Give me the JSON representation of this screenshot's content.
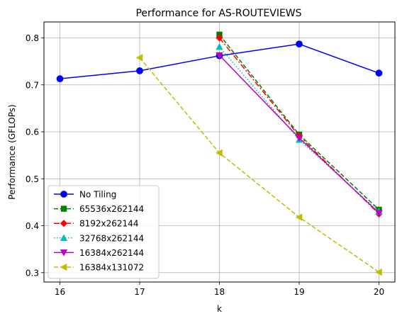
{
  "chart_data": {
    "type": "line",
    "title": "Performance for AS-ROUTEVIEWS",
    "xlabel": "k",
    "ylabel": "Performance (GFLOPs)",
    "xlim": [
      15.8,
      20.2
    ],
    "ylim": [
      0.28,
      0.834
    ],
    "xticks": [
      "16",
      "17",
      "18",
      "19",
      "20"
    ],
    "yticks": [
      "0.3",
      "0.4",
      "0.5",
      "0.6",
      "0.7",
      "0.8"
    ],
    "grid": true,
    "legend_position": "lower-left",
    "series": [
      {
        "name": "No Tiling",
        "color": "#0000ff",
        "linestyle": "solid",
        "marker": "circle",
        "x": [
          16,
          17,
          18,
          19,
          20
        ],
        "values": [
          0.713,
          0.73,
          0.762,
          0.787,
          0.725
        ]
      },
      {
        "name": "65536x262144",
        "color": "#008000",
        "linestyle": "dashed",
        "marker": "square",
        "x": [
          18,
          19,
          20
        ],
        "values": [
          0.807,
          0.594,
          0.434
        ]
      },
      {
        "name": "8192x262144",
        "color": "#ff0000",
        "linestyle": "dashdot",
        "marker": "diamond",
        "x": [
          18,
          19,
          20
        ],
        "values": [
          0.8,
          0.591,
          0.425
        ]
      },
      {
        "name": "32768x262144",
        "color": "#00bfbf",
        "linestyle": "dotted",
        "marker": "triangle-up",
        "x": [
          18,
          19,
          20
        ],
        "values": [
          0.781,
          0.583,
          0.43
        ]
      },
      {
        "name": "16384x262144",
        "color": "#bf00bf",
        "linestyle": "solid",
        "marker": "triangle-down",
        "x": [
          18,
          19,
          20
        ],
        "values": [
          0.763,
          0.587,
          0.427
        ]
      },
      {
        "name": "16384x131072",
        "color": "#bfbf00",
        "linestyle": "dashed",
        "marker": "triangle-left",
        "x": [
          17,
          18,
          19,
          20
        ],
        "values": [
          0.758,
          0.555,
          0.418,
          0.301
        ]
      }
    ]
  }
}
